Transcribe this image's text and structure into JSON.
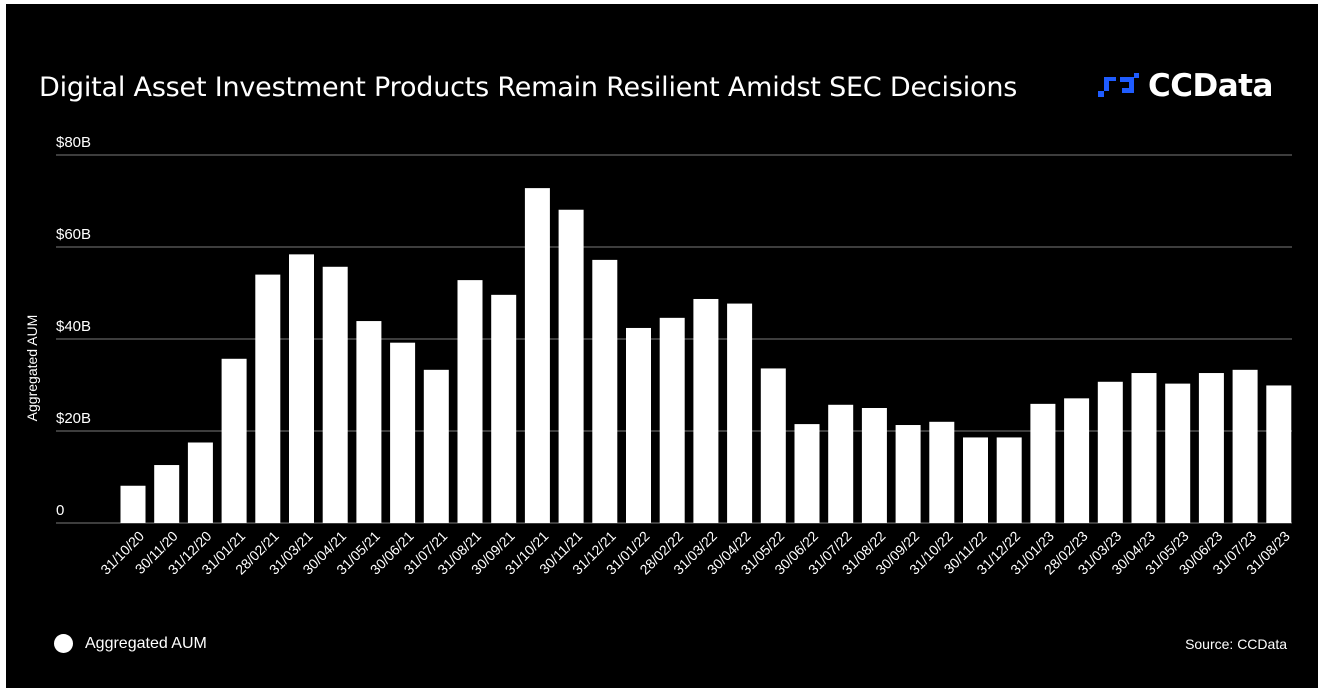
{
  "header": {
    "title": "Digital Asset Investment Products Remain Resilient Amidst SEC Decisions",
    "logo_text": "CCData",
    "logo_color": "#1f5cff"
  },
  "legend": {
    "label": "Aggregated AUM"
  },
  "footer": {
    "source": "Source: CCData"
  },
  "colors": {
    "background": "#000000",
    "bars": "#ffffff",
    "grid": "#7a7a7a"
  },
  "chart_data": {
    "type": "bar",
    "title": "Digital Asset Investment Products Remain Resilient Amidst SEC Decisions",
    "xlabel": "",
    "ylabel": "Aggregated AUM",
    "ylim": [
      0,
      80
    ],
    "yticks": [
      {
        "value": 0,
        "label": "0"
      },
      {
        "value": 20,
        "label": "$20B"
      },
      {
        "value": 40,
        "label": "$40B"
      },
      {
        "value": 60,
        "label": "$60B"
      },
      {
        "value": 80,
        "label": "$80B"
      }
    ],
    "grid": true,
    "legend_position": "bottom-left",
    "unit": "USD billions",
    "categories": [
      "31/10/20",
      "30/11/20",
      "31/12/20",
      "31/01/21",
      "28/02/21",
      "31/03/21",
      "30/04/21",
      "31/05/21",
      "30/06/21",
      "31/07/21",
      "31/08/21",
      "30/09/21",
      "31/10/21",
      "30/11/21",
      "31/12/21",
      "31/01/22",
      "28/02/22",
      "31/03/22",
      "30/04/22",
      "31/05/22",
      "30/06/22",
      "31/07/22",
      "31/08/22",
      "30/09/22",
      "31/10/22",
      "30/11/22",
      "31/12/22",
      "31/01/23",
      "28/02/23",
      "31/03/23",
      "30/04/23",
      "31/05/23",
      "30/06/23",
      "31/07/23",
      "31/08/23"
    ],
    "series": [
      {
        "name": "Aggregated AUM",
        "values": [
          8.1,
          12.6,
          17.5,
          35.7,
          54.0,
          58.4,
          55.7,
          43.9,
          39.2,
          33.3,
          52.8,
          49.6,
          72.8,
          68.1,
          57.2,
          42.4,
          44.6,
          48.7,
          47.7,
          33.6,
          21.5,
          25.7,
          25.0,
          21.3,
          22.0,
          18.6,
          18.6,
          25.9,
          27.1,
          30.7,
          32.6,
          30.3,
          32.6,
          33.3,
          29.9
        ]
      }
    ]
  }
}
